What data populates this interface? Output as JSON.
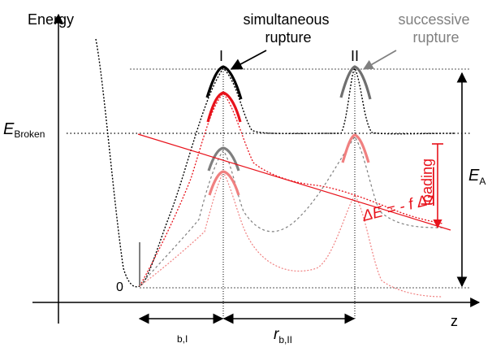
{
  "axes": {
    "y_label": "Energy",
    "x_label": "z",
    "origin_label": "0"
  },
  "labels": {
    "e_broken_main": "E",
    "e_broken_sub": "Broken",
    "e_a_main": "E",
    "e_a_sub": "A",
    "peak_one": "I",
    "peak_two": "II",
    "simultaneous_line1": "simultaneous",
    "simultaneous_line2": "rupture",
    "successive_line1": "successive",
    "successive_line2": "rupture",
    "loading": "loading",
    "delta_e": "ΔE = - f Δz",
    "rb1_sub": "b,I",
    "rb2_main": "r",
    "rb2_sub": "b,II"
  },
  "colors": {
    "black": "#000000",
    "red": "#e8121b",
    "light_red": "#f08080",
    "gray": "#808080",
    "dotted_gray": "#7f7f7f"
  }
}
